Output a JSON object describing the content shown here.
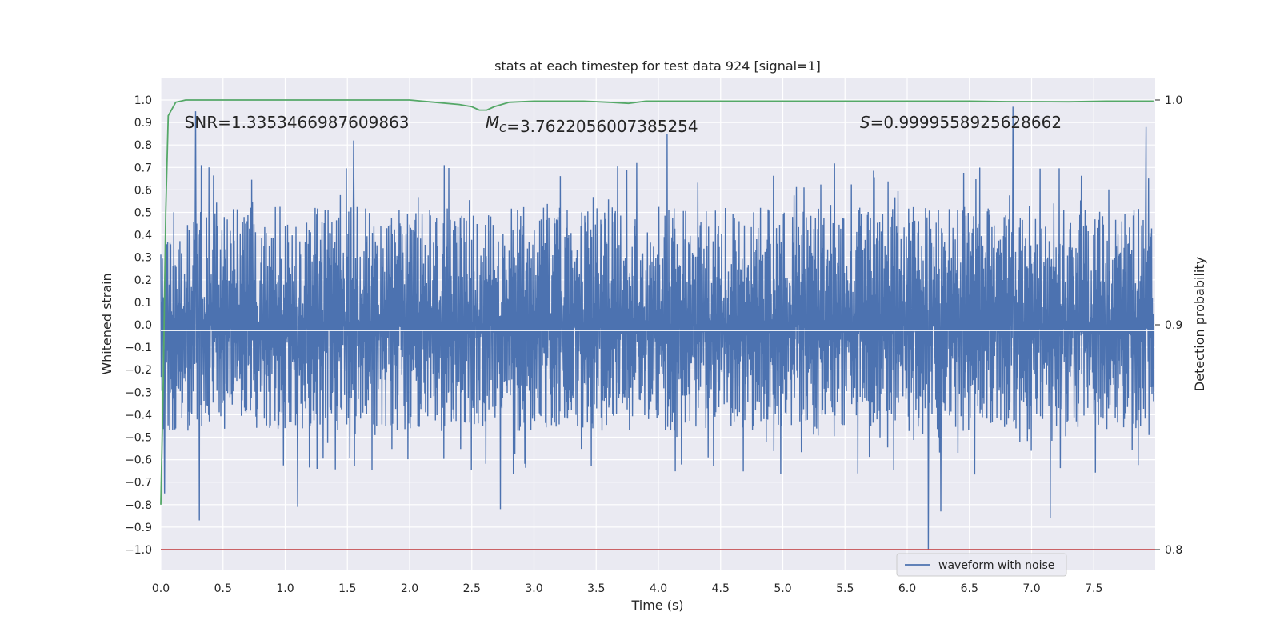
{
  "chart_data": {
    "type": "line",
    "title": "stats at each timestep for test data 924 [signal=1]",
    "xlabel": "Time (s)",
    "ylabel": "Whitened strain",
    "y2label": "Detection probability",
    "xlim": [
      0.0,
      8.0
    ],
    "ylim": [
      -1.1,
      1.05
    ],
    "y2lim": [
      0.795,
      1.0095
    ],
    "x_ticks": [
      0.0,
      0.5,
      1.0,
      1.5,
      2.0,
      2.5,
      3.0,
      3.5,
      4.0,
      4.5,
      5.0,
      5.5,
      6.0,
      6.5,
      7.0,
      7.5
    ],
    "x_tick_labels": [
      "0.0",
      "0.5",
      "1.0",
      "1.5",
      "2.0",
      "2.5",
      "3.0",
      "3.5",
      "4.0",
      "4.5",
      "5.0",
      "5.5",
      "6.0",
      "6.5",
      "7.0",
      "7.5"
    ],
    "y_ticks": [
      1.0,
      0.9,
      0.8,
      0.7,
      0.6,
      0.5,
      0.4,
      0.3,
      0.2,
      0.1,
      0.0,
      -0.1,
      -0.2,
      -0.3,
      -0.4,
      -0.5,
      -0.6,
      -0.7,
      -0.8,
      -0.9,
      -1.0
    ],
    "y_tick_labels": [
      "1.0",
      "0.9",
      "0.8",
      "0.7",
      "0.6",
      "0.5",
      "0.4",
      "0.3",
      "0.2",
      "0.1",
      "0.0",
      "−0.1",
      "−0.2",
      "−0.3",
      "−0.4",
      "−0.5",
      "−0.6",
      "−0.7",
      "−0.8",
      "−0.9",
      "−1.0"
    ],
    "y2_ticks": [
      1.0,
      0.9,
      0.8
    ],
    "y2_tick_labels": [
      "1.0",
      "0.9",
      "0.8"
    ],
    "grid": true,
    "legend_position": "bottom-right",
    "series": [
      {
        "name": "waveform with noise",
        "axis": "left",
        "color": "#4c72b0",
        "x_range": [
          0.0,
          7.98
        ],
        "typical_envelope": [
          -0.45,
          0.5
        ],
        "notable_peaks": [
          {
            "x": 0.28,
            "y": 0.95
          },
          {
            "x": 1.55,
            "y": 0.82
          },
          {
            "x": 4.07,
            "y": 0.85
          },
          {
            "x": 6.85,
            "y": 0.97
          },
          {
            "x": 7.92,
            "y": 0.88
          }
        ],
        "notable_troughs": [
          {
            "x": 0.03,
            "y": -0.75
          },
          {
            "x": 0.31,
            "y": -0.87
          },
          {
            "x": 1.1,
            "y": -0.81
          },
          {
            "x": 2.73,
            "y": -0.82
          },
          {
            "x": 6.17,
            "y": -1.0
          },
          {
            "x": 6.27,
            "y": -0.83
          },
          {
            "x": 7.15,
            "y": -0.86
          }
        ]
      },
      {
        "name": "",
        "axis": "right",
        "color": "#55a868",
        "x": [
          0.0,
          0.02,
          0.04,
          0.06,
          0.08,
          0.12,
          0.2,
          0.5,
          1.0,
          1.5,
          2.0,
          2.2,
          2.4,
          2.5,
          2.56,
          2.62,
          2.68,
          2.8,
          3.0,
          3.4,
          3.6,
          3.76,
          3.9,
          4.2,
          5.0,
          5.5,
          6.0,
          6.5,
          6.8,
          7.0,
          7.3,
          7.6,
          7.98
        ],
        "values": [
          0.82,
          0.875,
          0.95,
          0.993,
          0.995,
          0.999,
          1.0,
          1.0,
          1.0,
          1.0,
          1.0,
          0.999,
          0.998,
          0.997,
          0.9955,
          0.9955,
          0.997,
          0.999,
          0.9995,
          0.9995,
          0.999,
          0.9985,
          0.9995,
          0.9995,
          0.9995,
          0.9995,
          0.9995,
          0.9995,
          0.9993,
          0.9993,
          0.9992,
          0.9995,
          0.9995
        ]
      }
    ],
    "hlines": [
      {
        "axis": "left",
        "y": -0.025,
        "color": "#ffffff"
      },
      {
        "axis": "left",
        "y": -1.0,
        "color": "#c44e52"
      }
    ],
    "annotations": [
      {
        "segments": [
          {
            "text": "SNR=1.3353466987609863"
          }
        ],
        "x": 0.19,
        "y": 0.9
      },
      {
        "segments": [
          {
            "text": "M",
            "italic": true
          },
          {
            "text": "C",
            "italic": true,
            "sub": true
          },
          {
            "text": "=3.7622056007385254"
          }
        ],
        "x": 2.61,
        "y": 0.9
      },
      {
        "segments": [
          {
            "text": "S",
            "italic": true
          },
          {
            "text": "=0.9999558925628662"
          }
        ],
        "x": 5.62,
        "y": 0.9
      }
    ]
  }
}
